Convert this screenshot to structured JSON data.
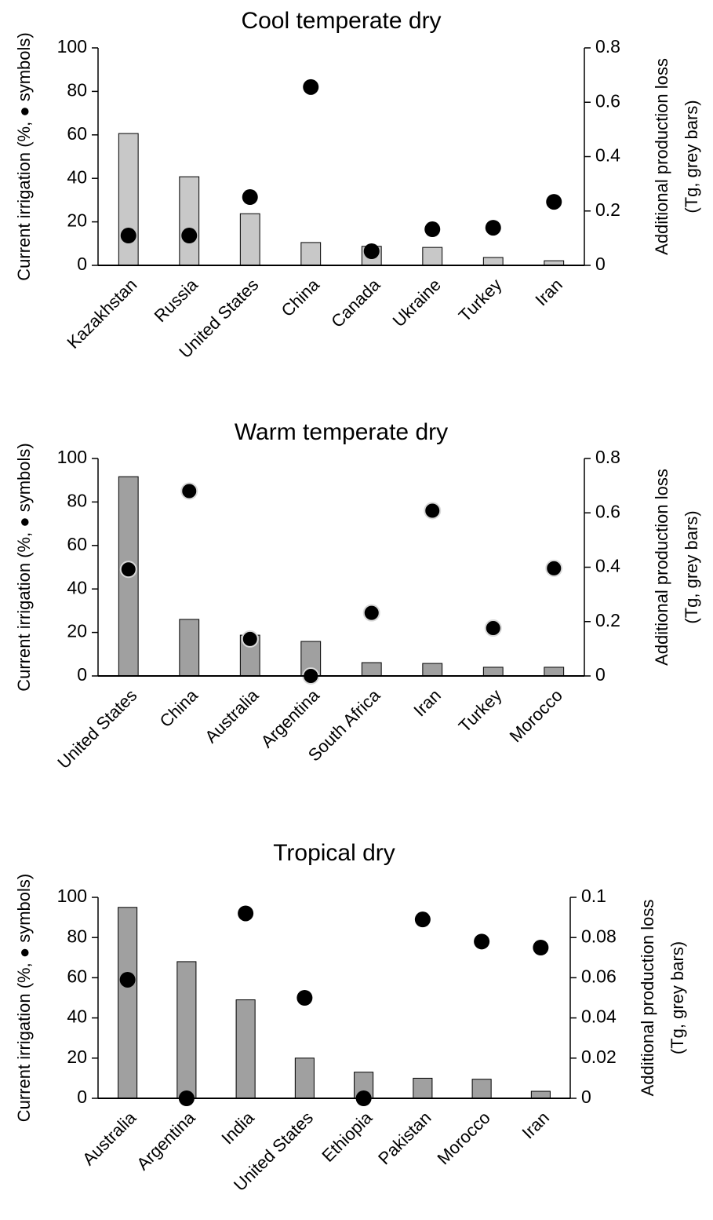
{
  "chart_data": [
    {
      "type": "combo",
      "title": "Cool temperate dry",
      "ylabel": "Current irrigation (%, ● symbols)",
      "y2label": [
        "Additional production loss",
        "(Tg, grey bars)"
      ],
      "categories": [
        "Kazakhstan",
        "Russia",
        "United States",
        "China",
        "Canada",
        "Ukraine",
        "Turkey",
        "Iran"
      ],
      "series": [
        {
          "type": "bar",
          "axis": "y2",
          "color": "#c8c8c8",
          "values": [
            0.485,
            0.326,
            0.19,
            0.084,
            0.07,
            0.066,
            0.029,
            0.017
          ]
        },
        {
          "type": "scatter",
          "color": "#000000",
          "values": [
            13.7,
            13.7,
            31.4,
            82,
            6.5,
            16.6,
            17.3,
            29.2
          ]
        }
      ],
      "ylim": [
        0,
        100
      ],
      "yticks": [
        0,
        20,
        40,
        60,
        80,
        100
      ],
      "y2lim": [
        0,
        0.8
      ],
      "y2ticks": [
        0,
        0.2,
        0.4,
        0.6,
        0.8
      ]
    },
    {
      "type": "combo",
      "title": "Warm temperate dry",
      "ylabel": "Current irrigation (%, ● symbols)",
      "y2label": [
        "Additional production loss",
        "(Tg, grey bars)"
      ],
      "categories": [
        "United States",
        "China",
        "Australia",
        "Argentina",
        "South Africa",
        "Iran",
        "Turkey",
        "Morocco"
      ],
      "series": [
        {
          "type": "bar",
          "axis": "y2",
          "color": "#a0a0a0",
          "values": [
            0.733,
            0.208,
            0.15,
            0.127,
            0.049,
            0.046,
            0.032,
            0.032
          ]
        },
        {
          "type": "scatter",
          "color": "#000000",
          "values": [
            49,
            85,
            17,
            0,
            29,
            76,
            22,
            49.5
          ]
        }
      ],
      "ylim": [
        0,
        100
      ],
      "yticks": [
        0,
        20,
        40,
        60,
        80,
        100
      ],
      "y2lim": [
        0,
        0.8
      ],
      "y2ticks": [
        0,
        0.2,
        0.4,
        0.6,
        0.8
      ]
    },
    {
      "type": "combo",
      "title": "Tropical dry",
      "ylabel": "Current irrigation (%, ● symbols)",
      "y2label": [
        "Additional production loss",
        "(Tg, grey bars)"
      ],
      "categories": [
        "Australia",
        "Argentina",
        "India",
        "United States",
        "Ethiopia",
        "Pakistan",
        "Morocco",
        "Iran"
      ],
      "series": [
        {
          "type": "bar",
          "axis": "y2",
          "color": "#a0a0a0",
          "values": [
            0.095,
            0.068,
            0.049,
            0.02,
            0.013,
            0.01,
            0.0095,
            0.0035
          ]
        },
        {
          "type": "scatter",
          "color": "#000000",
          "values": [
            59,
            0,
            92,
            50,
            0,
            89,
            78,
            75
          ]
        }
      ],
      "ylim": [
        0,
        100
      ],
      "yticks": [
        0,
        20,
        40,
        60,
        80,
        100
      ],
      "y2lim": [
        0,
        0.1
      ],
      "y2ticks": [
        0,
        0.02,
        0.04,
        0.06,
        0.08,
        0.1
      ]
    }
  ]
}
